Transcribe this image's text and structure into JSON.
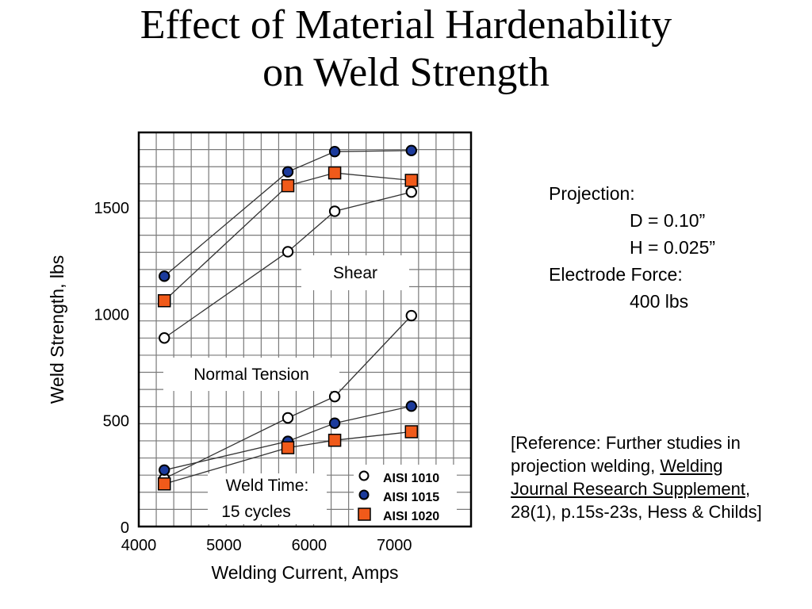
{
  "title": {
    "line1": "Effect of Material Hardenability",
    "line2": "on Weld Strength"
  },
  "projection": {
    "heading": "Projection:",
    "d": "D = 0.10”",
    "h": "H = 0.025”"
  },
  "electrode": {
    "heading": "Electrode Force:",
    "value": "400 lbs"
  },
  "reference": {
    "line1": "[Reference:  Further studies in",
    "line2_pre": "projection welding, ",
    "line2_link": "Welding",
    "line3_link": "Journal Research Supplement",
    "line3_post": ",",
    "line4": "28(1), p.15s-23s, Hess & Childs]"
  },
  "colors": {
    "aisi1010": "#ffffff",
    "aisi1015": "#1c3b9c",
    "aisi1020": "#f05a1a"
  },
  "chart_data": {
    "type": "line",
    "title": "",
    "xlabel": "Welding Current, Amps",
    "ylabel": "Weld Strength, lbs",
    "xlim": [
      4000,
      7900
    ],
    "ylim": [
      0,
      1850
    ],
    "xticks": [
      4000,
      5000,
      6000,
      7000
    ],
    "yticks": [
      0,
      500,
      1000,
      1500
    ],
    "grid": true,
    "legend": {
      "position": "bottom-right",
      "entries": [
        {
          "label": "AISI 1010",
          "marker": "circle-open"
        },
        {
          "label": "AISI 1015",
          "marker": "circle-filled"
        },
        {
          "label": "AISI 1020",
          "marker": "square"
        }
      ]
    },
    "annotations": [
      {
        "id": "shear",
        "text": "Shear"
      },
      {
        "id": "tension",
        "text": "Normal Tension"
      },
      {
        "id": "weld-time",
        "lines": [
          "Weld Time:",
          "15 cycles"
        ]
      }
    ],
    "series": [
      {
        "name": "AISI 1010",
        "test": "Shear",
        "marker": "circle-open",
        "x": [
          4300,
          5750,
          6300,
          7200
        ],
        "y": [
          885,
          1290,
          1480,
          1570
        ]
      },
      {
        "name": "AISI 1015",
        "test": "Shear",
        "marker": "circle-filled",
        "x": [
          4300,
          5750,
          6300,
          7200
        ],
        "y": [
          1175,
          1665,
          1760,
          1765
        ]
      },
      {
        "name": "AISI 1020",
        "test": "Shear",
        "marker": "square",
        "x": [
          4300,
          5750,
          6300,
          7200
        ],
        "y": [
          1060,
          1600,
          1660,
          1625
        ]
      },
      {
        "name": "AISI 1010",
        "test": "Normal Tension",
        "marker": "circle-open",
        "x": [
          4300,
          5750,
          6300,
          7200
        ],
        "y": [
          225,
          510,
          610,
          990
        ]
      },
      {
        "name": "AISI 1015",
        "test": "Normal Tension",
        "marker": "circle-filled",
        "x": [
          4300,
          5750,
          6300,
          7200
        ],
        "y": [
          265,
          400,
          485,
          565
        ]
      },
      {
        "name": "AISI 1020",
        "test": "Normal Tension",
        "marker": "square",
        "x": [
          4300,
          5750,
          6300,
          7200
        ],
        "y": [
          200,
          370,
          405,
          445
        ]
      }
    ]
  }
}
